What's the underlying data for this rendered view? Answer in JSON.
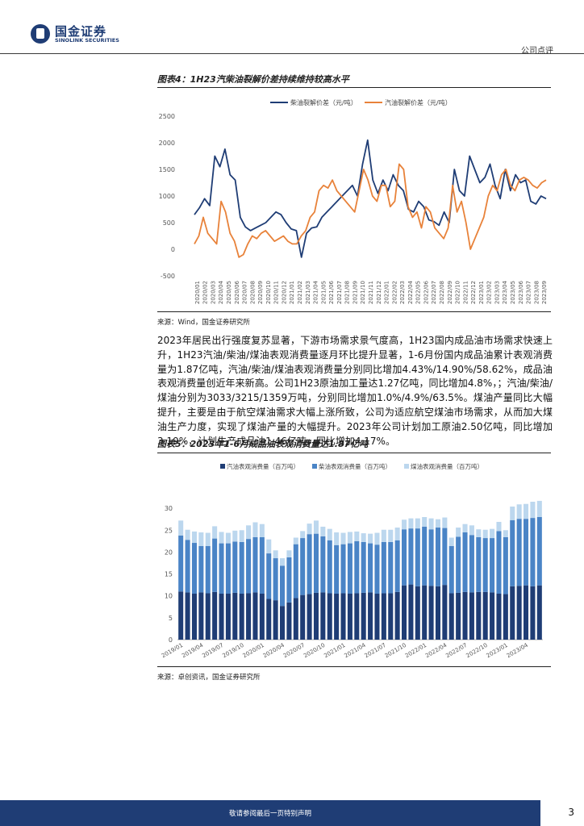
{
  "header": {
    "brand_cn": "国金证券",
    "brand_en": "SINOLINK SECURITIES",
    "report_type": "公司点评"
  },
  "figure4": {
    "title": "图表4：1H23汽柴油裂解价差持续维持较高水平",
    "source": "来源：Wind，国金证券研究所"
  },
  "body": {
    "paragraph": "2023年居民出行强度复苏显著，下游市场需求景气度高，1H23国内成品油市场需求快速上升，1H23汽油/柴油/煤油表观消费量逐月环比提升显著，1-6月份国内成品油累计表观消费量为1.87亿吨，汽油/柴油/煤油表观消费量分别同比增加4.43%/14.90%/58.62%，成品油表观消费量创近年来新高。公司1H23原油加工量达1.27亿吨，同比增加4.8%，；汽油/柴油/煤油分别为3033/3215/1359万吨，分别同比增加1.0%/4.9%/63.5%。煤油产量同比大幅提升，主要是由于航空煤油需求大幅上涨所致，公司为适应航空煤油市场需求，从而加大煤油生产力度，实现了煤油产量的大幅提升。2023年公司计划加工原油2.50亿吨，同比增加3.19%，计划生产成品油1.46亿吨，同比增加4.17%。"
  },
  "figure5": {
    "title": "图表5：2023年1-6月成品油表观消费量达1.87亿吨",
    "source": "来源：卓创资讯，国金证券研究所"
  },
  "footer": {
    "disclaimer": "敬请参阅最后一页特别声明",
    "page_number": "3"
  },
  "chart_data": [
    {
      "type": "line",
      "title": "",
      "xlabel": "",
      "ylabel": "",
      "ylim": [
        -500,
        2500
      ],
      "yticks": [
        "2500",
        "2000",
        "1500",
        "1000",
        "500",
        "0",
        "-500"
      ],
      "grid": false,
      "legend_position": "top",
      "x_tick_labels": [
        "2020/01",
        "2020/02",
        "2020/03",
        "2020/04",
        "2020/05",
        "2020/06",
        "2020/07",
        "2020/08",
        "2020/09",
        "2020/10",
        "2020/11",
        "2020/12",
        "2021/01",
        "2021/02",
        "2021/03",
        "2021/04",
        "2021/05",
        "2021/06",
        "2021/07",
        "2021/08",
        "2021/09",
        "2021/10",
        "2021/11",
        "2021/12",
        "2022/01",
        "2022/02",
        "2022/03",
        "2022/04",
        "2022/05",
        "2022/06",
        "2022/07",
        "2022/08",
        "2022/09",
        "2022/10",
        "2022/11",
        "2022/12",
        "2023/01",
        "2023/02",
        "2023/03",
        "2023/04",
        "2023/05",
        "2023/06",
        "2023/07",
        "2023/08",
        "2023/09"
      ],
      "series": [
        {
          "name": "柴油裂解价差（元/吨）",
          "color": "#1f3d75",
          "values": [
            650,
            780,
            950,
            820,
            1750,
            1550,
            1880,
            1400,
            1300,
            600,
            420,
            350,
            400,
            450,
            500,
            600,
            700,
            650,
            500,
            380,
            350,
            -150,
            300,
            400,
            420,
            600,
            700,
            800,
            900,
            1000,
            1100,
            1200,
            1000,
            1600,
            2050,
            1300,
            1050,
            1300,
            1100,
            1400,
            1200,
            1100,
            750,
            700,
            900,
            800,
            550,
            520,
            450,
            700,
            500,
            1500,
            1100,
            1000,
            1750,
            1500,
            1250,
            1350,
            1600,
            1200,
            950,
            1500,
            1100,
            1400,
            1250,
            1300,
            900,
            850,
            1000,
            950
          ]
        },
        {
          "name": "汽油裂解价差（元/吨）",
          "color": "#e8823a",
          "values": [
            100,
            250,
            600,
            300,
            200,
            100,
            900,
            700,
            300,
            150,
            -150,
            -100,
            100,
            250,
            200,
            300,
            350,
            250,
            150,
            200,
            250,
            150,
            100,
            100,
            250,
            350,
            600,
            700,
            1100,
            1200,
            1150,
            1300,
            1100,
            1000,
            900,
            800,
            700,
            1100,
            1500,
            1300,
            1000,
            900,
            1200,
            1200,
            800,
            900,
            1600,
            1500,
            800,
            600,
            700,
            400,
            800,
            700,
            400,
            300,
            200,
            400,
            1200,
            700,
            900,
            500,
            0,
            200,
            400,
            600,
            1000,
            1200,
            1100,
            1400,
            1500,
            1200,
            1100,
            1300,
            1350,
            1300,
            1200,
            1150,
            1250,
            1300
          ]
        }
      ]
    },
    {
      "type": "bar",
      "stacked": true,
      "title": "",
      "xlabel": "",
      "ylabel": "",
      "ylim": [
        0,
        35
      ],
      "yticks": [
        "0",
        "5",
        "10",
        "15",
        "20",
        "25",
        "30"
      ],
      "grid": false,
      "legend_position": "top",
      "x_tick_labels": [
        "2019/01",
        "2019/04",
        "2019/07",
        "2019/10",
        "2020/01",
        "2020/04",
        "2020/07",
        "2020/10",
        "2021/01",
        "2021/04",
        "2021/07",
        "2021/10",
        "2022/01",
        "2022/04",
        "2022/07",
        "2022/10",
        "2023/01",
        "2023/04"
      ],
      "categories_count": 54,
      "series": [
        {
          "name": "汽油表观消费量（百万吨）",
          "color": "#1f3d75",
          "values": [
            11,
            10.8,
            10.5,
            10.8,
            10.6,
            10.9,
            10.5,
            10.5,
            10.7,
            10.5,
            10.6,
            10.8,
            10.5,
            9.3,
            9,
            7.7,
            8.5,
            9.5,
            10.2,
            10.4,
            10.7,
            10.8,
            10.6,
            10.5,
            10.6,
            10.5,
            10.6,
            10.7,
            10.8,
            10.5,
            10.6,
            10.6,
            10.9,
            12.4,
            12.6,
            12.2,
            12.4,
            12.3,
            12.2,
            12.5,
            10.6,
            10.7,
            10.9,
            10.8,
            10.9,
            10.9,
            10.8,
            10.5,
            10.4,
            12.2,
            12.3,
            12.4,
            12.2,
            12.4
          ]
        },
        {
          "name": "柴油表观消费量（百万吨）",
          "color": "#4a84c6",
          "values": [
            12.8,
            12,
            11.6,
            10.6,
            10.8,
            12.2,
            11.5,
            11.5,
            11.7,
            11.8,
            12.4,
            12.6,
            12.9,
            10.4,
            9.6,
            9.2,
            10.3,
            12.3,
            13,
            13.7,
            13.5,
            12.8,
            12.1,
            11.1,
            11.2,
            11.5,
            11.9,
            11.6,
            11.2,
            11.2,
            11.7,
            11.7,
            11.8,
            12.8,
            12.8,
            13.2,
            13.4,
            12.9,
            13.4,
            13,
            10.8,
            12.8,
            13.6,
            13.1,
            12.5,
            12.3,
            12.4,
            14.3,
            13,
            15.1,
            15.3,
            15.2,
            15.6,
            15.6
          ]
        },
        {
          "name": "煤油表观消费量（百万吨）",
          "color": "#bcd7ee",
          "values": [
            3.4,
            2.3,
            2.6,
            3.1,
            3,
            2.8,
            2.6,
            2.4,
            2.5,
            2.7,
            3.1,
            3.4,
            3,
            3.2,
            1.8,
            1.7,
            1.6,
            1.5,
            1.6,
            2.4,
            3,
            2.2,
            2.6,
            2.9,
            2.6,
            2.6,
            2.2,
            2,
            2.2,
            2.7,
            2.8,
            2.8,
            2.9,
            2.2,
            2.3,
            2.3,
            2.2,
            2.5,
            1.9,
            2.4,
            1.9,
            2.1,
            1.9,
            2.2,
            1.8,
            1.9,
            2.1,
            2.1,
            1.6,
            3.1,
            3.3,
            3.4,
            3.7,
            3.7
          ]
        }
      ]
    }
  ]
}
